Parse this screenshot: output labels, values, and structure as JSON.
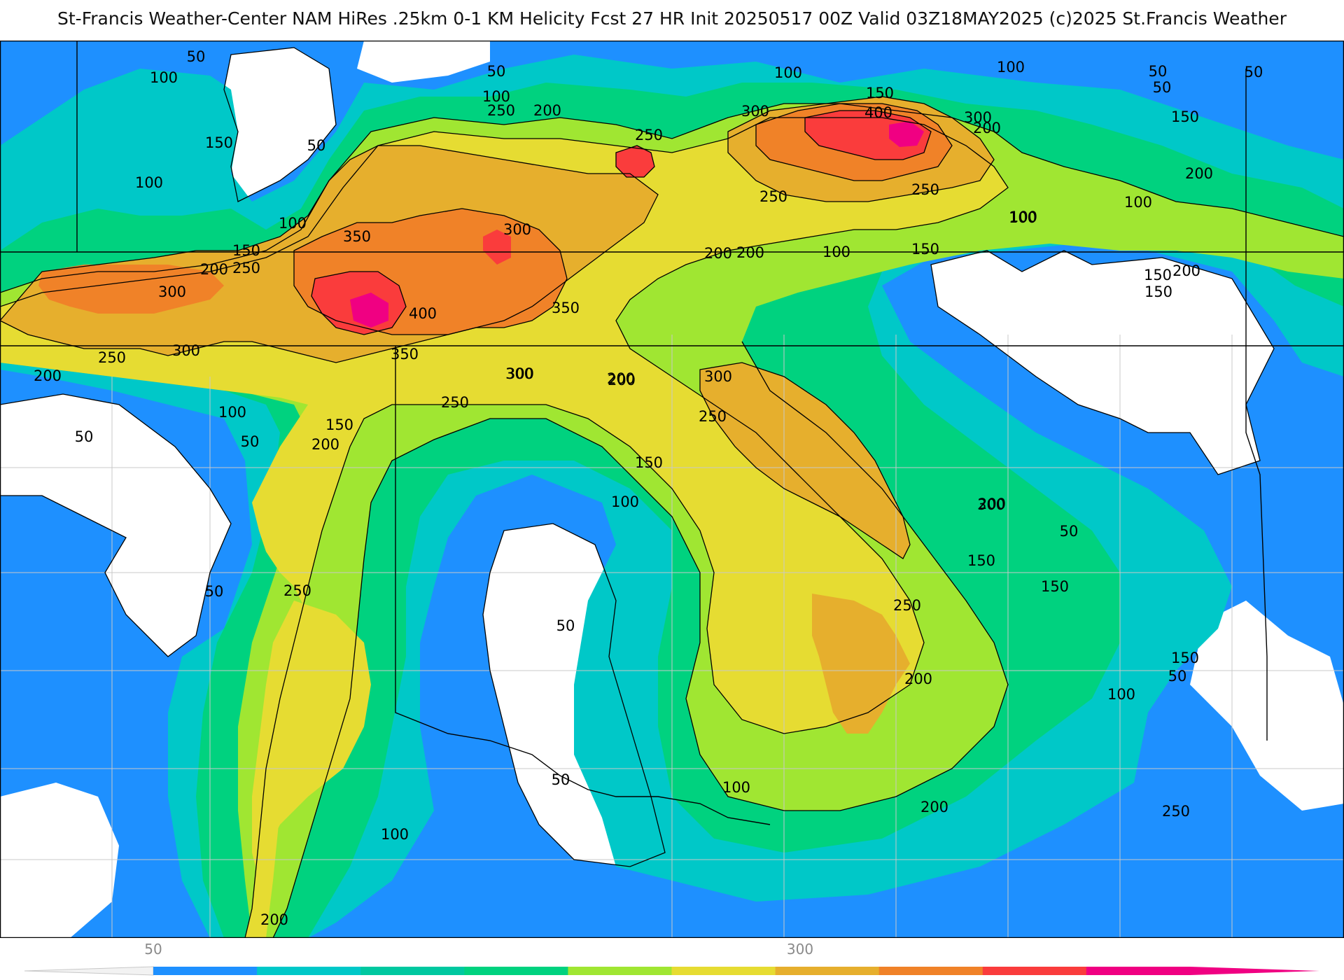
{
  "header": {
    "title": "St-Francis Weather-Center NAM HiRes .25km 0-1 KM Helicity Fcst 27 HR Init 20250517 00Z  Valid 03Z18MAY2025    (c)2025 St.Francis Weather"
  },
  "colors": {
    "c50": "#1e90ff",
    "c100": "#00c8c8",
    "c150": "#00d27f",
    "c200": "#a0e632",
    "c250": "#e6dc32",
    "c300": "#e6af2d",
    "c350": "#f08228",
    "c400": "#fa3c3c",
    "c450": "#f00082",
    "contour": "#000000",
    "borders": "#c8c8c8"
  },
  "contour_labels": [
    {
      "id": "l01",
      "text": "50"
    },
    {
      "id": "l02",
      "text": "100"
    },
    {
      "id": "l03",
      "text": "150"
    },
    {
      "id": "l04",
      "text": "100"
    },
    {
      "id": "l05",
      "text": "50"
    },
    {
      "id": "l06",
      "text": "100"
    },
    {
      "id": "l07",
      "text": "150"
    },
    {
      "id": "l08",
      "text": "200"
    },
    {
      "id": "l09",
      "text": "250"
    },
    {
      "id": "l10",
      "text": "350"
    },
    {
      "id": "l11",
      "text": "300"
    },
    {
      "id": "l12",
      "text": "250"
    },
    {
      "id": "l13",
      "text": "200"
    },
    {
      "id": "l14",
      "text": "300"
    },
    {
      "id": "l15",
      "text": "400"
    },
    {
      "id": "l16",
      "text": "350"
    },
    {
      "id": "l17",
      "text": "300"
    },
    {
      "id": "l18",
      "text": "250"
    },
    {
      "id": "l19",
      "text": "200"
    },
    {
      "id": "l20",
      "text": "100"
    },
    {
      "id": "l21",
      "text": "50"
    },
    {
      "id": "l22",
      "text": "150"
    },
    {
      "id": "l23",
      "text": "200"
    },
    {
      "id": "l24",
      "text": "50"
    },
    {
      "id": "l25",
      "text": "50"
    },
    {
      "id": "l26",
      "text": "100"
    },
    {
      "id": "l27",
      "text": "250"
    },
    {
      "id": "l28",
      "text": "200"
    },
    {
      "id": "l29",
      "text": "300"
    },
    {
      "id": "l30",
      "text": "350"
    },
    {
      "id": "l31",
      "text": "300"
    },
    {
      "id": "l32",
      "text": "250"
    },
    {
      "id": "l33",
      "text": "200"
    },
    {
      "id": "l34",
      "text": "50"
    },
    {
      "id": "l35",
      "text": "100"
    },
    {
      "id": "l36",
      "text": "200"
    },
    {
      "id": "l37",
      "text": "250"
    },
    {
      "id": "l38",
      "text": "200"
    },
    {
      "id": "l39",
      "text": "300"
    },
    {
      "id": "l40",
      "text": "250"
    },
    {
      "id": "l41",
      "text": "150"
    },
    {
      "id": "l42",
      "text": "100"
    },
    {
      "id": "l43",
      "text": "50"
    },
    {
      "id": "l44",
      "text": "250"
    },
    {
      "id": "l45",
      "text": "200"
    },
    {
      "id": "l46",
      "text": "100"
    },
    {
      "id": "l47",
      "text": "150"
    },
    {
      "id": "l48",
      "text": "300"
    },
    {
      "id": "l49",
      "text": "400"
    },
    {
      "id": "l50",
      "text": "250"
    },
    {
      "id": "l51",
      "text": "300"
    },
    {
      "id": "l52",
      "text": "200"
    },
    {
      "id": "l53",
      "text": "100"
    },
    {
      "id": "l54",
      "text": "150"
    },
    {
      "id": "l55",
      "text": "200"
    },
    {
      "id": "l56",
      "text": "100"
    },
    {
      "id": "l57",
      "text": "50"
    },
    {
      "id": "l58",
      "text": "150"
    },
    {
      "id": "l59",
      "text": "200"
    },
    {
      "id": "l60",
      "text": "100"
    },
    {
      "id": "l61",
      "text": "150"
    },
    {
      "id": "l62",
      "text": "100"
    },
    {
      "id": "l63",
      "text": "50"
    },
    {
      "id": "l64",
      "text": "50"
    },
    {
      "id": "l65",
      "text": "150"
    },
    {
      "id": "l66",
      "text": "300"
    },
    {
      "id": "l67",
      "text": "250"
    },
    {
      "id": "l68",
      "text": "150"
    },
    {
      "id": "l69",
      "text": "200"
    },
    {
      "id": "l70",
      "text": "150"
    },
    {
      "id": "l71",
      "text": "100"
    },
    {
      "id": "l72",
      "text": "50"
    },
    {
      "id": "l73",
      "text": "150"
    },
    {
      "id": "l74",
      "text": "100"
    },
    {
      "id": "l75",
      "text": "250"
    },
    {
      "id": "l76",
      "text": "200"
    },
    {
      "id": "l77",
      "text": "200"
    },
    {
      "id": "l78",
      "text": "50"
    },
    {
      "id": "l79",
      "text": "100"
    },
    {
      "id": "l80",
      "text": "50"
    }
  ],
  "legend": {
    "tick_labels": [
      "50",
      "300"
    ],
    "bins": [
      "#1e90ff",
      "#00c8c8",
      "#00c8a0",
      "#00d27f",
      "#a0e632",
      "#e6dc32",
      "#e6af2d",
      "#f08228",
      "#fa3c3c",
      "#f00082"
    ]
  }
}
